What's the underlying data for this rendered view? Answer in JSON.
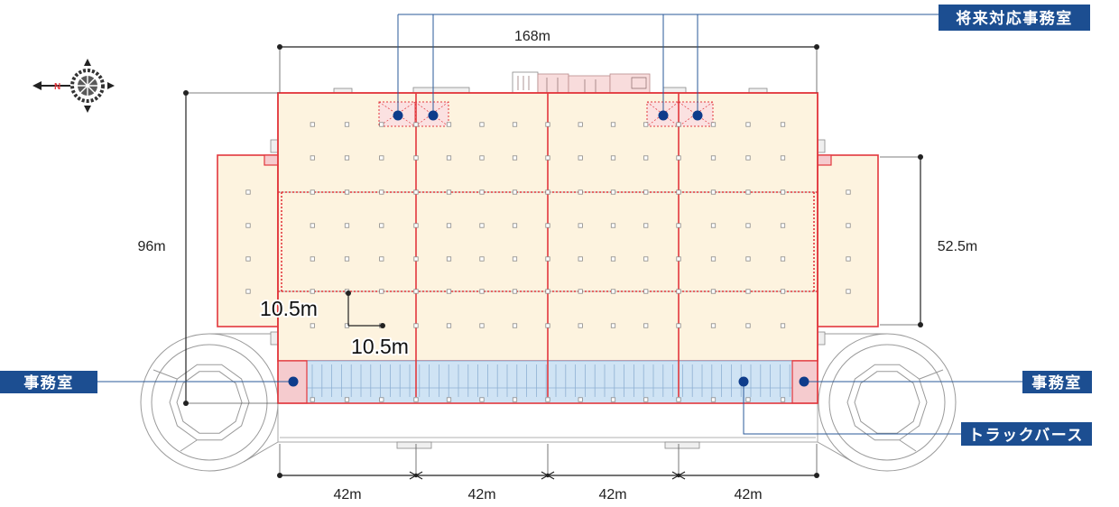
{
  "compass": {
    "label": "N",
    "icon": "compass-icon"
  },
  "dimensions": {
    "overall_width": "168m",
    "overall_depth": "96m",
    "wing_depth": "52.5m",
    "bays": [
      "42m",
      "42m",
      "42m",
      "42m"
    ],
    "column_span_vertical": "10.5m",
    "column_span_horizontal": "10.5m"
  },
  "callouts": {
    "future_office": "将来対応事務室",
    "office_left": "事務室",
    "office_right": "事務室",
    "truck_berth": "トラックバース"
  },
  "colors": {
    "warehouse_fill": "#fdf3df",
    "outline": "#e2373d",
    "berth_fill": "#cfe3f4",
    "office_fill": "#f5cbce",
    "label_bg": "#1c4e91",
    "marker": "#0e3c8b",
    "dimension": "#222222"
  }
}
